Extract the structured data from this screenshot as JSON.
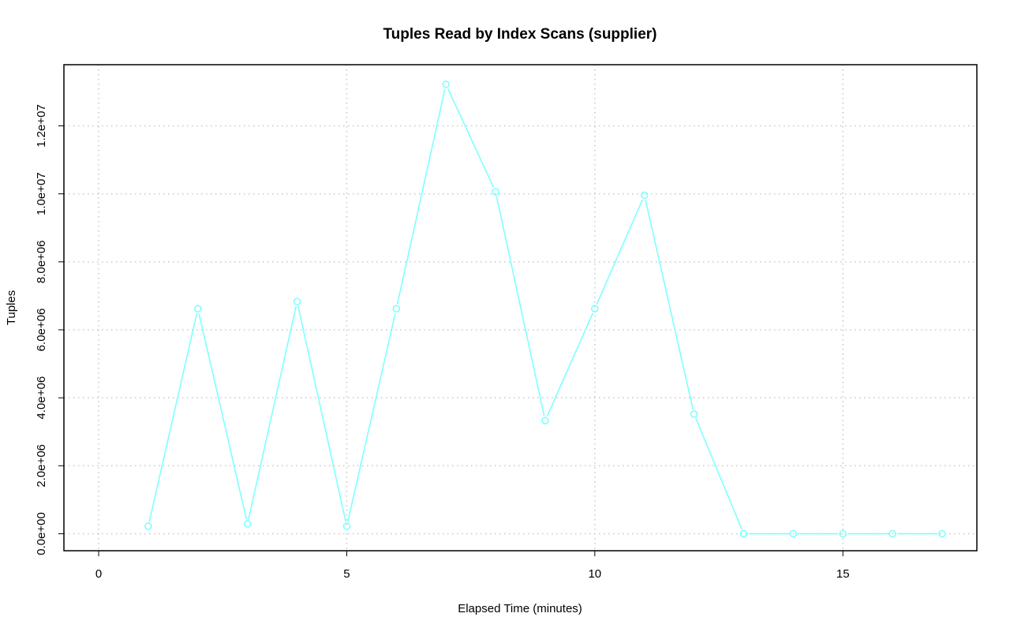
{
  "chart_data": {
    "type": "line",
    "title": "Tuples Read by Index Scans (supplier)",
    "xlabel": "Elapsed Time (minutes)",
    "ylabel": "Tuples",
    "xlim": [
      -0.7,
      17.7
    ],
    "ylim": [
      -500000,
      13800000
    ],
    "x_ticks": [
      0,
      5,
      10,
      15
    ],
    "x_tick_labels": [
      "0",
      "5",
      "10",
      "15"
    ],
    "y_ticks": [
      0,
      2000000,
      4000000,
      6000000,
      8000000,
      10000000,
      12000000
    ],
    "y_tick_labels": [
      "0.0e+00",
      "2.0e+06",
      "4.0e+06",
      "6.0e+06",
      "8.0e+06",
      "1.0e+07",
      "1.2e+07"
    ],
    "grid": true,
    "series": [
      {
        "color": "#7fffff",
        "marker": "circle",
        "x": [
          1,
          2,
          3,
          4,
          5,
          6,
          7,
          8,
          9,
          10,
          11,
          12,
          13,
          14,
          15,
          16,
          17
        ],
        "y": [
          220000,
          6620000,
          290000,
          6830000,
          220000,
          6620000,
          13220000,
          10060000,
          3330000,
          6620000,
          9960000,
          3520000,
          0,
          0,
          0,
          0,
          0
        ]
      }
    ]
  }
}
